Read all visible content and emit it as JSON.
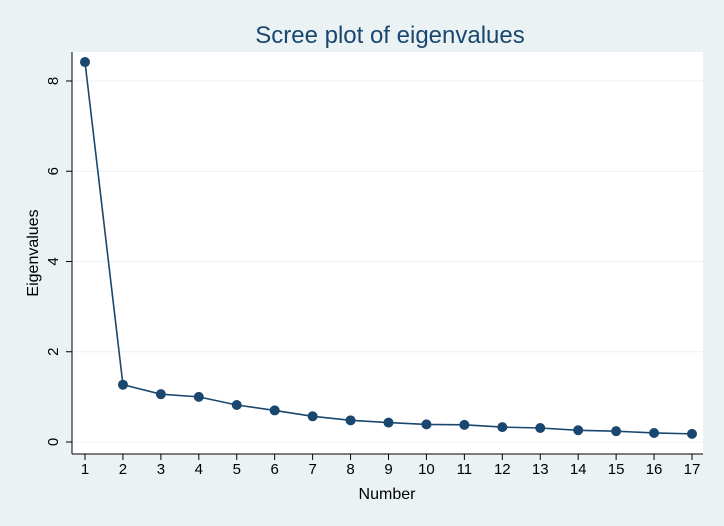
{
  "chart_data": {
    "type": "line",
    "title": "Scree plot of eigenvalues",
    "xlabel": "Number",
    "ylabel": "Eigenvalues",
    "x": [
      1,
      2,
      3,
      4,
      5,
      6,
      7,
      8,
      9,
      10,
      11,
      12,
      13,
      14,
      15,
      16,
      17
    ],
    "y": [
      8.42,
      1.27,
      1.06,
      1.0,
      0.82,
      0.7,
      0.57,
      0.48,
      0.43,
      0.39,
      0.38,
      0.33,
      0.31,
      0.26,
      0.24,
      0.2,
      0.18
    ],
    "xlim": [
      1,
      17
    ],
    "ylim": [
      0,
      8.5
    ],
    "xticks": [
      1,
      2,
      3,
      4,
      5,
      6,
      7,
      8,
      9,
      10,
      11,
      12,
      13,
      14,
      15,
      16,
      17
    ],
    "yticks": [
      0,
      2,
      4,
      6,
      8
    ],
    "grid": true,
    "colors": {
      "background": "#eaf2f3",
      "plot_area": "#ffffff",
      "series": "#1a476f",
      "grid": "#eaf2f3"
    }
  }
}
